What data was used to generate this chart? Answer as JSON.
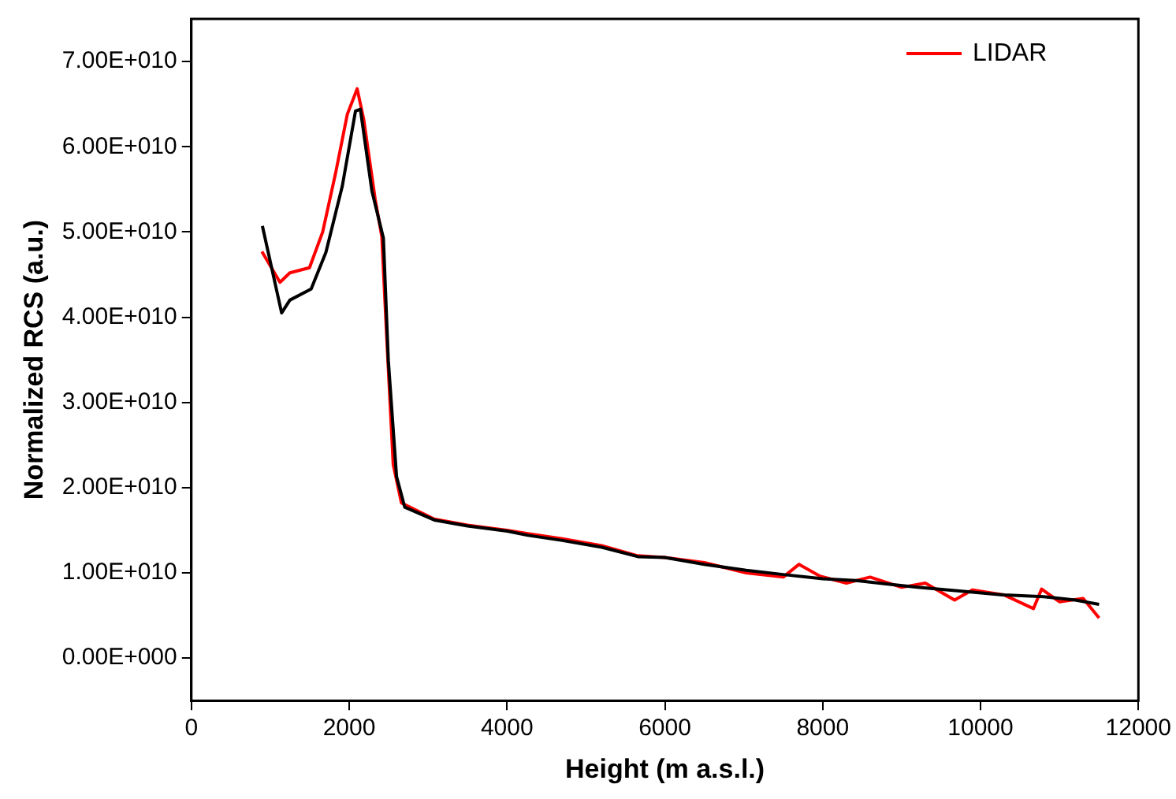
{
  "chart_data": {
    "type": "line",
    "xlabel": "Height (m a.s.l.)",
    "ylabel": "Normalized RCS (a.u.)",
    "xlim": [
      0,
      12000
    ],
    "xticks": [
      0,
      2000,
      4000,
      6000,
      8000,
      10000,
      12000
    ],
    "ylim": [
      -5000000000,
      75000000000
    ],
    "yticks": [
      {
        "value": 0,
        "label": "0.00E+000"
      },
      {
        "value": 10000000000,
        "label": "1.00E+010"
      },
      {
        "value": 20000000000,
        "label": "2.00E+010"
      },
      {
        "value": 30000000000,
        "label": "3.00E+010"
      },
      {
        "value": 40000000000,
        "label": "4.00E+010"
      },
      {
        "value": 50000000000,
        "label": "5.00E+010"
      },
      {
        "value": 60000000000,
        "label": "6.00E+010"
      },
      {
        "value": 70000000000,
        "label": "7.00E+010"
      }
    ],
    "grid": false,
    "legend": "top right",
    "marker": "none",
    "line_style": "solid",
    "series": [
      {
        "color": "#000000",
        "x": [
          900,
          1144,
          1248,
          1518,
          1705,
          1913,
          2080,
          2142,
          2288,
          2433,
          2496,
          2600,
          2704,
          3078,
          3500,
          4000,
          4264,
          4700,
          5200,
          5657,
          6000,
          6500,
          7030,
          7500,
          8000,
          8424,
          8800,
          9200,
          9817,
          10300,
          10800,
          11200,
          11502
        ],
        "values": [
          50700000000.0,
          40500000000.0,
          42000000000.0,
          43300000000.0,
          47600000000.0,
          55400000000.0,
          64200000000.0,
          64400000000.0,
          54800000000.0,
          49300000000.0,
          34900000000.0,
          21300000000.0,
          17700000000.0,
          16200000000.0,
          15500000000.0,
          14900000000.0,
          14400000000.0,
          13800000000.0,
          13000000000.0,
          11900000000.0,
          11800000000.0,
          11000000000.0,
          10300000000.0,
          9800000000.0,
          9300000000.0,
          9100000000.0,
          8700000000.0,
          8300000000.0,
          7800000000.0,
          7400000000.0,
          7200000000.0,
          6800000000.0,
          6300000000.0
        ]
      },
      {
        "name": "LIDAR",
        "color": "#ff0000",
        "x": [
          894,
          1123,
          1248,
          1497,
          1664,
          1830,
          1976,
          2101,
          2184,
          2330,
          2413,
          2475,
          2558,
          2662,
          3078,
          3500,
          4000,
          4264,
          4700,
          5200,
          5657,
          6000,
          6500,
          7030,
          7500,
          7700,
          7966,
          8300,
          8600,
          9000,
          9300,
          9671,
          9900,
          10300,
          10670,
          10774,
          11000,
          11300,
          11502
        ],
        "values": [
          47700000000.0,
          44100000000.0,
          45200000000.0,
          45800000000.0,
          50000000000.0,
          57000000000.0,
          63800000000.0,
          66800000000.0,
          63200000000.0,
          53800000000.0,
          49500000000.0,
          37700000000.0,
          22700000000.0,
          18200000000.0,
          16300000000.0,
          15600000000.0,
          15000000000.0,
          14600000000.0,
          14000000000.0,
          13200000000.0,
          12000000000.0,
          11800000000.0,
          11200000000.0,
          10000000000.0,
          9500000000.0,
          11000000000.0,
          9600000000.0,
          8800000000.0,
          9500000000.0,
          8300000000.0,
          8800000000.0,
          6800000000.0,
          8000000000.0,
          7400000000.0,
          5800000000.0,
          8100000000.0,
          6600000000.0,
          7000000000.0,
          4700000000.0
        ]
      }
    ]
  }
}
